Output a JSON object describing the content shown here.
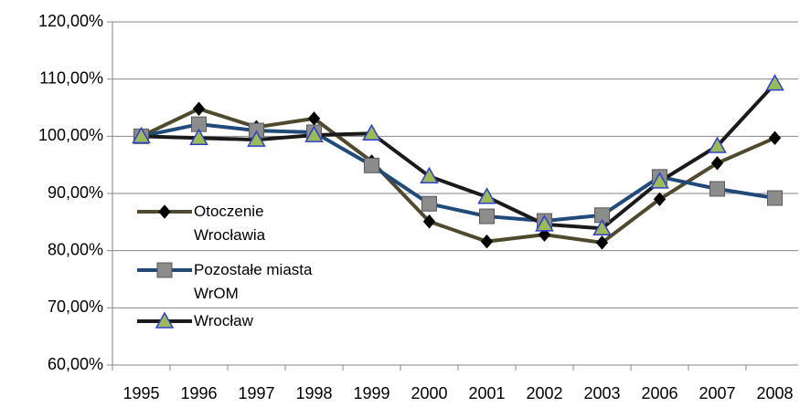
{
  "chart_data": {
    "type": "line",
    "categories": [
      "1995",
      "1996",
      "1997",
      "1998",
      "1999",
      "2000",
      "2001",
      "2002",
      "2003",
      "2006",
      "2007",
      "2008"
    ],
    "series": [
      {
        "name": "Otoczenie Wrocławia",
        "color": "#4f4a2e",
        "marker": "diamond",
        "marker_color": "#000000",
        "values": [
          100,
          104.8,
          101.6,
          103.1,
          95.6,
          85.1,
          81.6,
          82.8,
          81.4,
          89.0,
          95.3,
          99.7
        ]
      },
      {
        "name": "Pozostałe miasta WrOM",
        "color": "#1f4a7a",
        "marker": "square",
        "marker_color": "#8c8c8c",
        "values": [
          100,
          102.1,
          101.0,
          100.7,
          94.9,
          88.2,
          86.0,
          85.2,
          86.2,
          92.9,
          90.8,
          89.2
        ]
      },
      {
        "name": "Wrocław",
        "color": "#1a1a1a",
        "marker": "triangle",
        "marker_color": "#9bbb59",
        "values": [
          100,
          99.7,
          99.4,
          100.2,
          100.5,
          93.0,
          89.4,
          84.6,
          83.9,
          92.1,
          98.3,
          109.2
        ]
      }
    ],
    "ylim": [
      60,
      120
    ],
    "yticks": [
      {
        "value": 60,
        "label": "60,00%"
      },
      {
        "value": 70,
        "label": "70,00%"
      },
      {
        "value": 80,
        "label": "80,00%"
      },
      {
        "value": 90,
        "label": "90,00%"
      },
      {
        "value": 100,
        "label": "100,00%"
      },
      {
        "value": 110,
        "label": "110,00%"
      },
      {
        "value": 120,
        "label": "120,00%"
      }
    ],
    "grid": true,
    "legend": "left"
  }
}
